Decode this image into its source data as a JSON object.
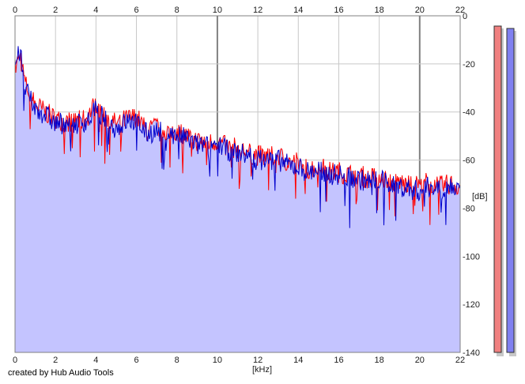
{
  "footer": {
    "credit": "created by Hub Audio Tools"
  },
  "colors": {
    "left_channel": "#ff0000",
    "right_channel": "#0000cc",
    "fill": "#c4c4ff",
    "grid": "#c8c8c8",
    "grid_major": "#808080",
    "meter_left": "#f08080",
    "meter_right": "#8080f0"
  },
  "chart_data": {
    "type": "line",
    "title": "",
    "xlabel": "[kHz]",
    "ylabel": "[dB]",
    "xlim": [
      0,
      22
    ],
    "ylim": [
      -140,
      0
    ],
    "x_ticks": [
      "0",
      "2",
      "4",
      "6",
      "8",
      "10",
      "12",
      "14",
      "16",
      "18",
      "20",
      "22"
    ],
    "y_ticks": [
      "0",
      "-20",
      "-40",
      "-60",
      "-80",
      "-100",
      "-120",
      "-140"
    ],
    "grid": true,
    "fill_under": true,
    "series": [
      {
        "color": "#ff0000",
        "x": [
          0,
          0.25,
          0.5,
          0.75,
          1,
          1.5,
          2,
          2.5,
          3,
          3.5,
          4,
          4.5,
          5,
          5.5,
          6,
          6.5,
          7,
          7.5,
          8,
          8.5,
          9,
          9.5,
          10,
          10.5,
          11,
          11.5,
          12,
          12.5,
          13,
          13.5,
          14,
          14.5,
          15,
          15.5,
          16,
          16.5,
          17,
          17.5,
          18,
          18.5,
          19,
          19.5,
          20,
          20.5,
          21,
          21.5,
          22
        ],
        "values": [
          -22,
          -16,
          -28,
          -33,
          -37,
          -40,
          -43,
          -44,
          -44,
          -43,
          -36,
          -42,
          -45,
          -43,
          -42,
          -48,
          -46,
          -48,
          -48,
          -50,
          -52,
          -53,
          -52,
          -55,
          -55,
          -57,
          -58,
          -59,
          -58,
          -61,
          -61,
          -64,
          -62,
          -65,
          -65,
          -66,
          -66,
          -68,
          -66,
          -69,
          -69,
          -71,
          -70,
          -69,
          -71,
          -70,
          -71
        ]
      },
      {
        "color": "#0000cc",
        "x": [
          0,
          0.25,
          0.5,
          0.75,
          1,
          1.5,
          2,
          2.5,
          3,
          3.5,
          4,
          4.5,
          5,
          5.5,
          6,
          6.5,
          7,
          7.5,
          8,
          8.5,
          9,
          9.5,
          10,
          10.5,
          11,
          11.5,
          12,
          12.5,
          13,
          13.5,
          14,
          14.5,
          15,
          15.5,
          16,
          16.5,
          17,
          17.5,
          18,
          18.5,
          19,
          19.5,
          20,
          20.5,
          21,
          21.5,
          22
        ],
        "values": [
          -20,
          -15,
          -30,
          -35,
          -39,
          -41,
          -45,
          -44,
          -45,
          -44,
          -39,
          -44,
          -47,
          -44,
          -44,
          -49,
          -48,
          -49,
          -50,
          -51,
          -54,
          -54,
          -53,
          -56,
          -57,
          -58,
          -60,
          -60,
          -60,
          -62,
          -63,
          -65,
          -64,
          -66,
          -66,
          -67,
          -68,
          -69,
          -68,
          -70,
          -71,
          -72,
          -73,
          -71,
          -72,
          -71,
          -72
        ]
      }
    ],
    "meters": [
      {
        "channel": "left",
        "level": 1.0
      },
      {
        "channel": "right",
        "level": 1.0
      }
    ]
  }
}
